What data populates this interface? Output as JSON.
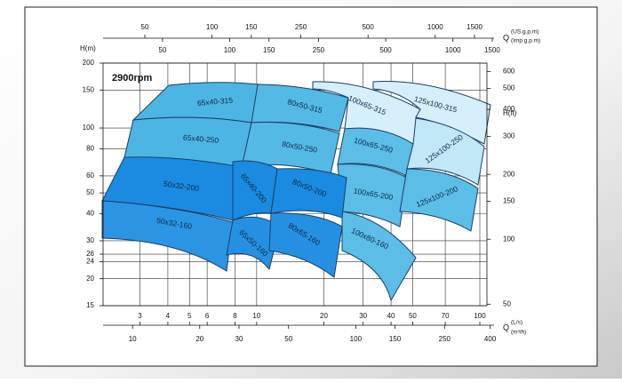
{
  "chart_data": {
    "type": "pump-selection",
    "title": "2900rpm",
    "y_label": "H(m)",
    "y2_label": "H(ft)",
    "x_label": "Q",
    "x_unit": "(L/s)",
    "x2_unit": "(m³/h)",
    "x3_unit": "(US.g.p.m)",
    "x4_unit": "(Imp.g.p.m)",
    "log_scale": true,
    "grid": true,
    "ylim": [
      15,
      200
    ],
    "yticks": [
      15,
      20,
      24,
      26,
      30,
      40,
      50,
      60,
      80,
      100,
      150,
      200
    ],
    "y2lim": [
      49.2,
      656
    ],
    "y2ticks": [
      50,
      100,
      150,
      200,
      300,
      400,
      500,
      600
    ],
    "xlim": [
      2.05,
      107.6
    ],
    "xticks": [
      3,
      4,
      5,
      6,
      8,
      10,
      20,
      30,
      40,
      50,
      70,
      100
    ],
    "x2lim": [
      7.38,
      387
    ],
    "x2ticks": [
      10,
      20,
      30,
      50,
      100,
      150,
      250,
      400
    ],
    "x3lim": [
      32.5,
      1705
    ],
    "x3ticks": [
      50,
      100,
      150,
      250,
      500,
      1000,
      1500
    ],
    "x4lim": [
      27.1,
      1420
    ],
    "x4ticks": [
      50,
      100,
      150,
      250,
      500,
      1000,
      1500
    ],
    "regions": [
      "65x40-315",
      "65x40-250",
      "80x50-315",
      "80x50-250",
      "100x65-315",
      "125x100-315",
      "100x65-250",
      "125x100-250",
      "100x65-200",
      "125x100-200",
      "100x80-160",
      "50x32-200",
      "50x32-160",
      "65x40-200",
      "80x50-200",
      "65x50-160",
      "80x65-160"
    ]
  }
}
